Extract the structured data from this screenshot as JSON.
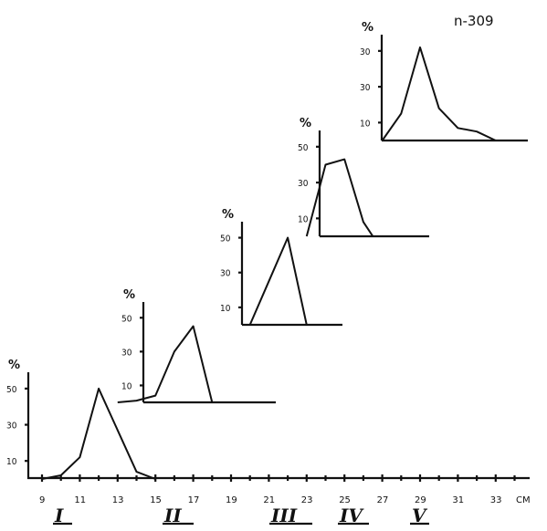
{
  "figure_label": "n-309",
  "unit": "%",
  "x_unit": "CM",
  "x_axis_ticks": [
    "9",
    "11",
    "13",
    "15",
    "17",
    "19",
    "21",
    "23",
    "25",
    "27",
    "29",
    "31",
    "33"
  ],
  "chart_data": [
    {
      "type": "line",
      "group": "I",
      "y_ticks": [
        "50",
        "30",
        "10"
      ],
      "x": [
        9,
        10,
        11,
        12,
        14,
        15
      ],
      "y": [
        0,
        2,
        12,
        50,
        4,
        0
      ],
      "ylim": [
        0,
        55
      ],
      "xlabel": "",
      "ylabel": "%"
    },
    {
      "type": "line",
      "group": "II",
      "y_ticks": [
        "50",
        "30",
        "10"
      ],
      "x": [
        13,
        14,
        15,
        16,
        17,
        18,
        19
      ],
      "y": [
        0,
        1,
        4,
        30,
        45,
        0,
        0
      ],
      "ylim": [
        0,
        55
      ],
      "xlabel": "",
      "ylabel": "%"
    },
    {
      "type": "line",
      "group": "III",
      "y_ticks": [
        "50",
        "30",
        "10"
      ],
      "x": [
        20,
        21,
        22,
        23
      ],
      "y": [
        0,
        25,
        50,
        0
      ],
      "ylim": [
        0,
        55
      ],
      "xlabel": "",
      "ylabel": "%"
    },
    {
      "type": "line",
      "group": "IV",
      "y_ticks": [
        "50",
        "30",
        "10"
      ],
      "x": [
        23,
        24,
        25,
        26,
        26.5,
        27
      ],
      "y": [
        0,
        40,
        43,
        8,
        0,
        0
      ],
      "ylim": [
        0,
        55
      ],
      "xlabel": "",
      "ylabel": "%"
    },
    {
      "type": "line",
      "group": "V",
      "y_ticks": [
        "30",
        "30",
        "10"
      ],
      "x": [
        27,
        28,
        29,
        30,
        31,
        32,
        33
      ],
      "y": [
        0,
        15,
        52,
        18,
        7,
        5,
        0
      ],
      "ylim": [
        0,
        55
      ],
      "xlabel": "",
      "ylabel": "%"
    }
  ]
}
